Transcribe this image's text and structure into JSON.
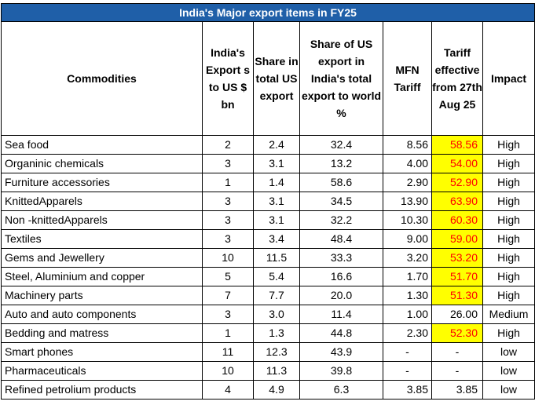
{
  "title": "India's Major export items in FY25",
  "headers": [
    "Commodities",
    "India's Export s to US $ bn",
    "Share in total US export",
    "Share of US export in India's total export to world %",
    "MFN Tariff",
    "Tariff effective from 27th Aug 25",
    "Impact"
  ],
  "rows": [
    {
      "commodity": "Sea food",
      "exports": "2",
      "share_us": "2.4",
      "share_world": "32.4",
      "mfn": "8.56",
      "tariff": "58.56",
      "tariff_highlight": true,
      "impact": "High"
    },
    {
      "commodity": "Organinic chemicals",
      "exports": "3",
      "share_us": "3.1",
      "share_world": "13.2",
      "mfn": "4.00",
      "tariff": "54.00",
      "tariff_highlight": true,
      "impact": "High"
    },
    {
      "commodity": "Furniture accessories",
      "exports": "1",
      "share_us": "1.4",
      "share_world": "58.6",
      "mfn": "2.90",
      "tariff": "52.90",
      "tariff_highlight": true,
      "impact": "High"
    },
    {
      "commodity": "KnittedApparels",
      "exports": "3",
      "share_us": "3.1",
      "share_world": "34.5",
      "mfn": "13.90",
      "tariff": "63.90",
      "tariff_highlight": true,
      "impact": "High"
    },
    {
      "commodity": "Non -knittedApparels",
      "exports": "3",
      "share_us": "3.1",
      "share_world": "32.2",
      "mfn": "10.30",
      "tariff": "60.30",
      "tariff_highlight": true,
      "impact": "High"
    },
    {
      "commodity": "Textiles",
      "exports": "3",
      "share_us": "3.4",
      "share_world": "48.4",
      "mfn": "9.00",
      "tariff": "59.00",
      "tariff_highlight": true,
      "impact": "High"
    },
    {
      "commodity": "Gems and Jewellery",
      "exports": "10",
      "share_us": "11.5",
      "share_world": "33.3",
      "mfn": "3.20",
      "tariff": "53.20",
      "tariff_highlight": true,
      "impact": "High"
    },
    {
      "commodity": "Steel, Aluminium and copper",
      "exports": "5",
      "share_us": "5.4",
      "share_world": "16.6",
      "mfn": "1.70",
      "tariff": "51.70",
      "tariff_highlight": true,
      "impact": "High"
    },
    {
      "commodity": "Machinery parts",
      "exports": "7",
      "share_us": "7.7",
      "share_world": "20.0",
      "mfn": "1.30",
      "tariff": "51.30",
      "tariff_highlight": true,
      "impact": "High"
    },
    {
      "commodity": "Auto and auto components",
      "exports": "3",
      "share_us": "3.0",
      "share_world": "11.4",
      "mfn": "1.00",
      "tariff": "26.00",
      "tariff_highlight": false,
      "impact": "Medium"
    },
    {
      "commodity": "Bedding and matress",
      "exports": "1",
      "share_us": "1.3",
      "share_world": "44.8",
      "mfn": "2.30",
      "tariff": "52.30",
      "tariff_highlight": true,
      "impact": "High"
    },
    {
      "commodity": "Smart phones",
      "exports": "11",
      "share_us": "12.3",
      "share_world": "43.9",
      "mfn": "-",
      "tariff": "-",
      "tariff_highlight": false,
      "impact": "low"
    },
    {
      "commodity": "Pharmaceuticals",
      "exports": "10",
      "share_us": "11.3",
      "share_world": "39.8",
      "mfn": "-",
      "tariff": "-",
      "tariff_highlight": false,
      "impact": "low"
    },
    {
      "commodity": "Refined petrolium products",
      "exports": "4",
      "share_us": "4.9",
      "share_world": "6.3",
      "mfn": "3.85",
      "tariff": "3.85",
      "tariff_highlight": false,
      "impact": "low"
    }
  ],
  "colors": {
    "title_bg": "#1f5fa8",
    "title_text": "#ffffff",
    "highlight_bg": "#ffff00",
    "highlight_text": "#ff0000"
  }
}
